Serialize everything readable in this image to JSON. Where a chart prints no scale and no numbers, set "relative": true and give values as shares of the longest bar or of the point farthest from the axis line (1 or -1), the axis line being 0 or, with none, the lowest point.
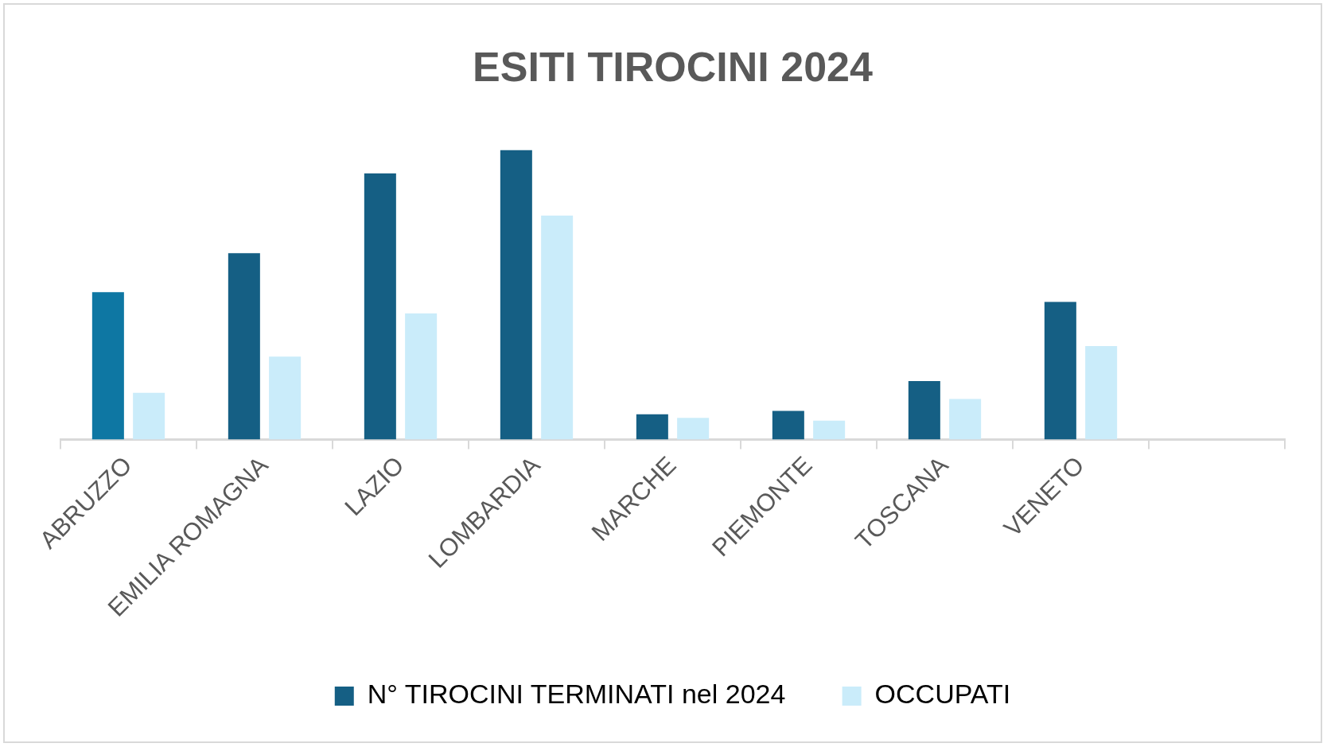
{
  "chart_data": {
    "type": "bar",
    "title": "ESITI TIROCINI 2024",
    "relative": true,
    "legend": "bottom",
    "categories": [
      "ABRUZZO",
      "EMILIA ROMAGNA",
      "LAZIO",
      "LOMBARDIA",
      "MARCHE",
      "PIEMONTE",
      "TOSCANA",
      "VENETO",
      null
    ],
    "series": [
      {
        "name": "N° TIROCINI TERMINATI nel 2024",
        "color": "#155f84",
        "colors": [
          "#0e77a3",
          "#155f84",
          "#155f84",
          "#155f84",
          "#155f84",
          "#155f84",
          "#155f84",
          "#155f84",
          "#155f84"
        ],
        "values": [
          0.509,
          0.643,
          0.919,
          1,
          0.087,
          0.099,
          0.202,
          0.475,
          null
        ]
      },
      {
        "name": "OCCUPATI",
        "color": "#caecfa",
        "values": [
          0.161,
          0.286,
          0.435,
          0.773,
          0.075,
          0.065,
          0.14,
          0.323,
          null
        ]
      }
    ]
  }
}
